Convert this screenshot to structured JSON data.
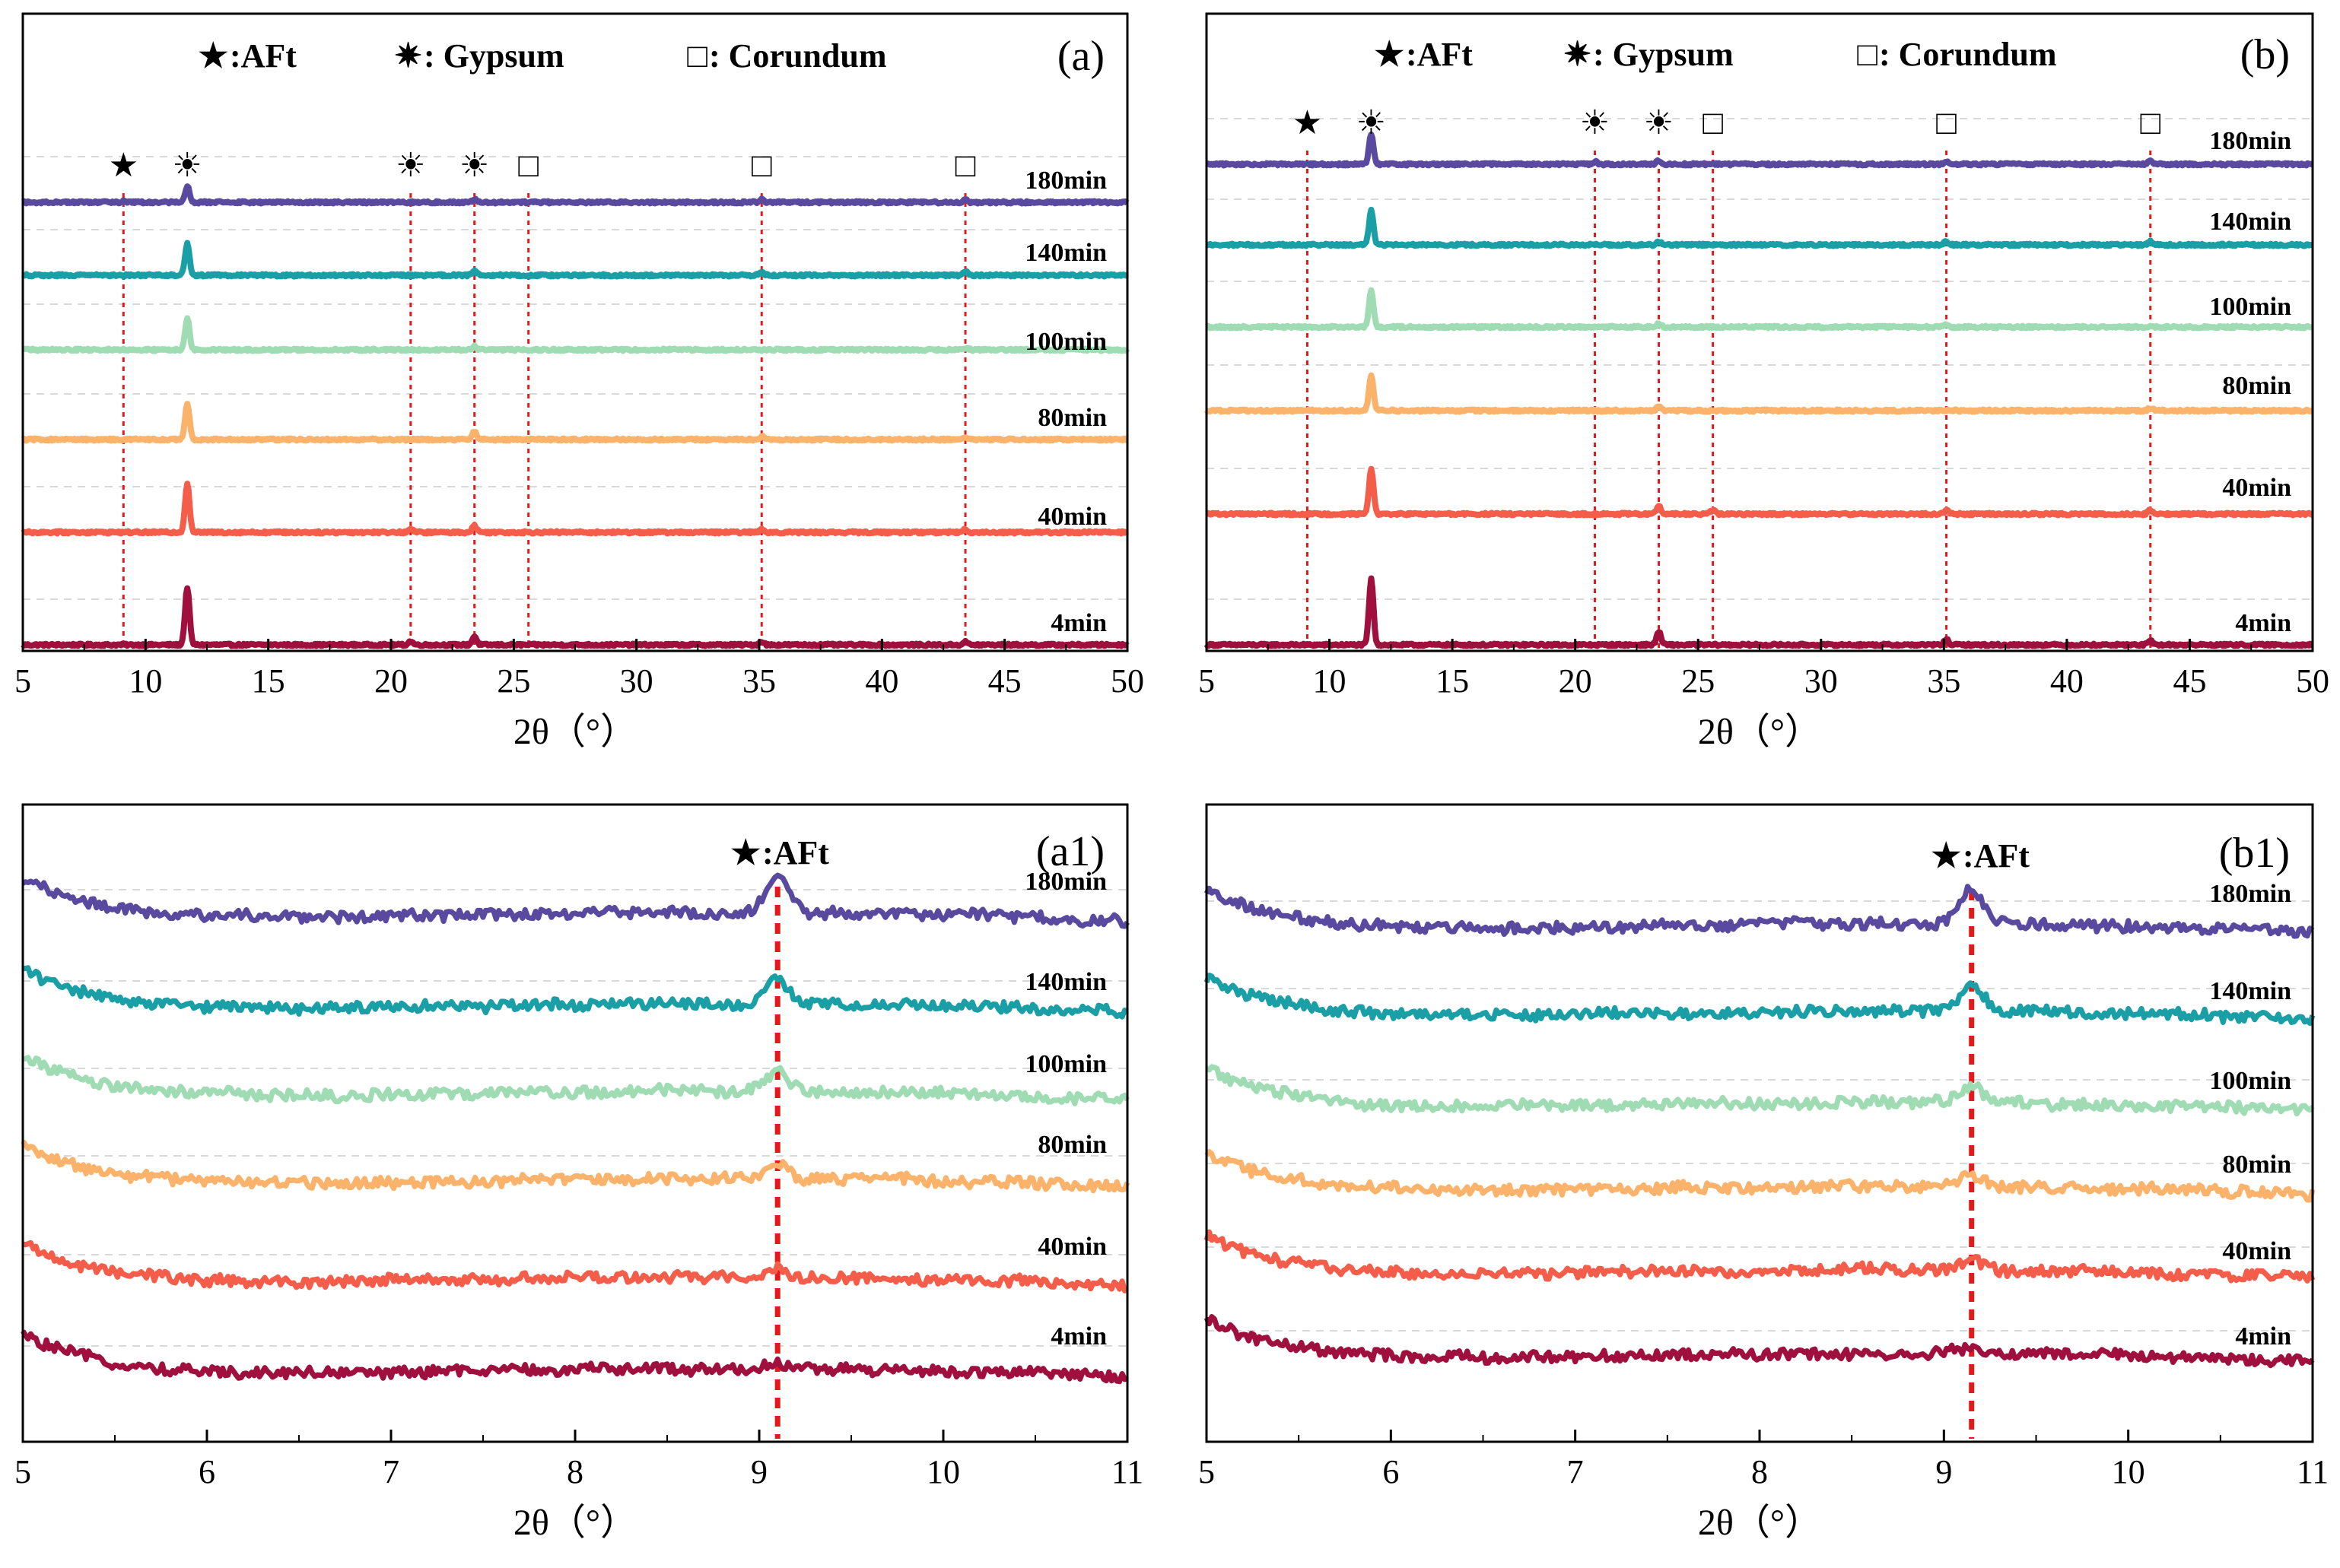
{
  "chart_data": [
    {
      "id": "a",
      "type": "line",
      "panel_label": "(a)",
      "xlabel": "2θ（°）",
      "xlim": [
        5,
        50
      ],
      "x_ticks": [
        5,
        10,
        15,
        20,
        25,
        30,
        35,
        40,
        45,
        50
      ],
      "legend": [
        {
          "marker": "★",
          "text": ":AFt"
        },
        {
          "marker": "✷",
          "text": ": Gypsum"
        },
        {
          "marker": "□",
          "text": ": Corundum"
        }
      ],
      "reference_lines": [
        9.1,
        20.8,
        23.4,
        25.6,
        35.1,
        43.4
      ],
      "peak_markers": [
        {
          "x": 9.1,
          "symbol": "★"
        },
        {
          "x": 11.7,
          "symbol": "☀"
        },
        {
          "x": 20.8,
          "symbol": "☀"
        },
        {
          "x": 23.4,
          "symbol": "☀"
        },
        {
          "x": 25.6,
          "symbol": "□"
        },
        {
          "x": 35.1,
          "symbol": "□"
        },
        {
          "x": 43.4,
          "symbol": "□"
        }
      ],
      "series": [
        {
          "name": "4min",
          "color": "#a0103f",
          "peaks": [
            {
              "x": 11.7,
              "h": 1.0
            },
            {
              "x": 23.4,
              "h": 0.15
            },
            {
              "x": 20.8,
              "h": 0.06
            },
            {
              "x": 35.1,
              "h": 0.06
            },
            {
              "x": 43.4,
              "h": 0.05
            }
          ]
        },
        {
          "name": "40min",
          "color": "#f55d4b",
          "peaks": [
            {
              "x": 11.7,
              "h": 0.85
            },
            {
              "x": 23.4,
              "h": 0.12
            },
            {
              "x": 20.8,
              "h": 0.06
            },
            {
              "x": 35.1,
              "h": 0.05
            },
            {
              "x": 43.4,
              "h": 0.05
            }
          ]
        },
        {
          "name": "80min",
          "color": "#fbb26a",
          "peaks": [
            {
              "x": 11.7,
              "h": 0.62
            },
            {
              "x": 23.4,
              "h": 0.14
            },
            {
              "x": 35.1,
              "h": 0.06
            },
            {
              "x": 43.4,
              "h": 0.05
            }
          ]
        },
        {
          "name": "100min",
          "color": "#9fdcb3",
          "peaks": [
            {
              "x": 11.7,
              "h": 0.55
            },
            {
              "x": 23.4,
              "h": 0.06
            },
            {
              "x": 43.4,
              "h": 0.04
            }
          ]
        },
        {
          "name": "140min",
          "color": "#1a9fa6",
          "peaks": [
            {
              "x": 11.7,
              "h": 0.55
            },
            {
              "x": 23.4,
              "h": 0.07
            },
            {
              "x": 35.1,
              "h": 0.05
            },
            {
              "x": 43.4,
              "h": 0.06
            }
          ]
        },
        {
          "name": "180min",
          "color": "#5a4a9f",
          "peaks": [
            {
              "x": 11.7,
              "h": 0.28
            },
            {
              "x": 23.4,
              "h": 0.05
            },
            {
              "x": 35.1,
              "h": 0.05
            },
            {
              "x": 43.4,
              "h": 0.04
            },
            {
              "x": 9.1,
              "h": 0.02
            }
          ]
        }
      ]
    },
    {
      "id": "b",
      "type": "line",
      "panel_label": "(b)",
      "xlabel": "2θ（°）",
      "xlim": [
        5,
        50
      ],
      "x_ticks": [
        5,
        10,
        15,
        20,
        25,
        30,
        35,
        40,
        45,
        50
      ],
      "legend": [
        {
          "marker": "★",
          "text": ":AFt"
        },
        {
          "marker": "✷",
          "text": ": Gypsum"
        },
        {
          "marker": "□",
          "text": ": Corundum"
        }
      ],
      "reference_lines": [
        9.1,
        20.8,
        23.4,
        25.6,
        35.1,
        43.4
      ],
      "peak_markers": [
        {
          "x": 9.1,
          "symbol": "★"
        },
        {
          "x": 11.7,
          "symbol": "☀"
        },
        {
          "x": 20.8,
          "symbol": "☀"
        },
        {
          "x": 23.4,
          "symbol": "☀"
        },
        {
          "x": 25.6,
          "symbol": "□"
        },
        {
          "x": 35.1,
          "symbol": "□"
        },
        {
          "x": 43.4,
          "symbol": "□"
        }
      ],
      "series": [
        {
          "name": "4min",
          "color": "#a0103f",
          "peaks": [
            {
              "x": 11.7,
              "h": 1.0
            },
            {
              "x": 23.4,
              "h": 0.2
            },
            {
              "x": 35.1,
              "h": 0.08
            },
            {
              "x": 43.4,
              "h": 0.06
            }
          ]
        },
        {
          "name": "40min",
          "color": "#f55d4b",
          "peaks": [
            {
              "x": 11.7,
              "h": 0.7
            },
            {
              "x": 23.4,
              "h": 0.12
            },
            {
              "x": 25.6,
              "h": 0.06
            },
            {
              "x": 35.1,
              "h": 0.06
            },
            {
              "x": 43.4,
              "h": 0.06
            }
          ]
        },
        {
          "name": "80min",
          "color": "#fbb26a",
          "peaks": [
            {
              "x": 11.7,
              "h": 0.52
            },
            {
              "x": 23.4,
              "h": 0.06
            },
            {
              "x": 43.4,
              "h": 0.04
            }
          ]
        },
        {
          "name": "100min",
          "color": "#9fdcb3",
          "peaks": [
            {
              "x": 11.7,
              "h": 0.55
            },
            {
              "x": 23.4,
              "h": 0.05
            },
            {
              "x": 35.1,
              "h": 0.04
            }
          ]
        },
        {
          "name": "140min",
          "color": "#1a9fa6",
          "peaks": [
            {
              "x": 11.7,
              "h": 0.52
            },
            {
              "x": 23.4,
              "h": 0.05
            },
            {
              "x": 35.1,
              "h": 0.05
            },
            {
              "x": 43.4,
              "h": 0.05
            }
          ]
        },
        {
          "name": "180min",
          "color": "#5a4a9f",
          "peaks": [
            {
              "x": 11.7,
              "h": 0.45
            },
            {
              "x": 20.8,
              "h": 0.04
            },
            {
              "x": 23.4,
              "h": 0.06
            },
            {
              "x": 35.1,
              "h": 0.05
            },
            {
              "x": 43.4,
              "h": 0.05
            }
          ]
        }
      ]
    },
    {
      "id": "a1",
      "type": "line",
      "panel_label": "(a1)",
      "xlabel": "2θ（°）",
      "xlim": [
        5,
        11
      ],
      "x_ticks": [
        5,
        6,
        7,
        8,
        9,
        10,
        11
      ],
      "legend": [
        {
          "marker": "★",
          "text": ":AFt"
        }
      ],
      "reference_lines": [
        9.1
      ],
      "series": [
        {
          "name": "4min",
          "color": "#a0103f",
          "peaks": [
            {
              "x": 9.1,
              "h": 0.02
            }
          ]
        },
        {
          "name": "40min",
          "color": "#f55d4b",
          "peaks": [
            {
              "x": 9.1,
              "h": 0.03
            }
          ]
        },
        {
          "name": "80min",
          "color": "#fbb26a",
          "peaks": [
            {
              "x": 9.1,
              "h": 0.05
            }
          ]
        },
        {
          "name": "100min",
          "color": "#9fdcb3",
          "peaks": [
            {
              "x": 9.1,
              "h": 0.06
            }
          ]
        },
        {
          "name": "140min",
          "color": "#1a9fa6",
          "peaks": [
            {
              "x": 9.1,
              "h": 0.08
            }
          ]
        },
        {
          "name": "180min",
          "color": "#5a4a9f",
          "peaks": [
            {
              "x": 9.1,
              "h": 0.12
            }
          ]
        }
      ]
    },
    {
      "id": "b1",
      "type": "line",
      "panel_label": "(b1)",
      "xlabel": "2θ（°）",
      "xlim": [
        5,
        11
      ],
      "x_ticks": [
        5,
        6,
        7,
        8,
        9,
        10,
        11
      ],
      "legend": [
        {
          "marker": "★",
          "text": ":AFt"
        }
      ],
      "reference_lines": [
        9.15
      ],
      "series": [
        {
          "name": "4min",
          "color": "#a0103f",
          "peaks": [
            {
              "x": 9.15,
              "h": 0.02
            }
          ]
        },
        {
          "name": "40min",
          "color": "#f55d4b",
          "peaks": [
            {
              "x": 9.15,
              "h": 0.03
            }
          ]
        },
        {
          "name": "80min",
          "color": "#fbb26a",
          "peaks": [
            {
              "x": 9.15,
              "h": 0.04
            }
          ]
        },
        {
          "name": "100min",
          "color": "#9fdcb3",
          "peaks": [
            {
              "x": 9.15,
              "h": 0.05
            }
          ]
        },
        {
          "name": "140min",
          "color": "#1a9fa6",
          "peaks": [
            {
              "x": 9.15,
              "h": 0.1
            }
          ]
        },
        {
          "name": "180min",
          "color": "#5a4a9f",
          "peaks": [
            {
              "x": 9.15,
              "h": 0.12
            }
          ]
        }
      ]
    }
  ]
}
